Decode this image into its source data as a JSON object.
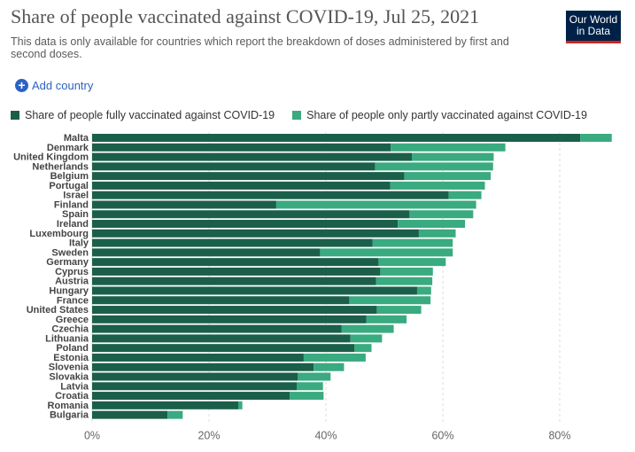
{
  "header": {
    "title": "Share of people vaccinated against COVID-19, Jul 25, 2021",
    "subtitle": "This data is only available for countries which report the breakdown of doses administered by first and second doses.",
    "logo_line1": "Our World",
    "logo_line2": "in Data"
  },
  "controls": {
    "add_country": "Add country"
  },
  "colors": {
    "fully": "#1b5f4a",
    "partly": "#3aaa80",
    "grid": "#dddddd",
    "link": "#2c62c4"
  },
  "chart_data": {
    "type": "bar",
    "orientation": "horizontal",
    "stacked": true,
    "title": "Share of people vaccinated against COVID-19, Jul 25, 2021",
    "xlabel": "",
    "ylabel": "",
    "xlim": [
      0,
      90
    ],
    "x_ticks": [
      "0%",
      "20%",
      "40%",
      "60%",
      "80%"
    ],
    "x_tick_values": [
      0,
      20,
      40,
      60,
      80
    ],
    "grid": true,
    "legend_position": "top",
    "categories": [
      "Malta",
      "Denmark",
      "United Kingdom",
      "Netherlands",
      "Belgium",
      "Portugal",
      "Israel",
      "Finland",
      "Spain",
      "Ireland",
      "Luxembourg",
      "Italy",
      "Sweden",
      "Germany",
      "Cyprus",
      "Austria",
      "Hungary",
      "France",
      "United States",
      "Greece",
      "Czechia",
      "Lithuania",
      "Poland",
      "Estonia",
      "Slovenia",
      "Slovakia",
      "Latvia",
      "Croatia",
      "Romania",
      "Bulgaria"
    ],
    "series": [
      {
        "name": "Share of people fully vaccinated against COVID-19",
        "values": [
          83.5,
          51.1,
          54.7,
          48.4,
          53.4,
          51.0,
          61.0,
          31.5,
          54.3,
          52.3,
          55.9,
          48.0,
          39.0,
          49.0,
          49.3,
          48.6,
          55.6,
          44.0,
          48.7,
          46.9,
          42.7,
          44.2,
          44.9,
          36.2,
          37.9,
          35.2,
          35.0,
          33.8,
          25.0,
          12.9
        ],
        "color": "#1b5f4a"
      },
      {
        "name": "Share of people only partly vaccinated against COVID-19",
        "values": [
          5.4,
          19.6,
          14.0,
          20.2,
          14.8,
          16.2,
          5.6,
          34.2,
          10.9,
          11.5,
          6.3,
          13.7,
          22.7,
          11.5,
          9.0,
          9.6,
          2.4,
          13.9,
          7.6,
          6.9,
          8.9,
          5.4,
          2.9,
          10.6,
          5.2,
          5.6,
          4.5,
          5.8,
          0.7,
          2.6
        ],
        "color": "#3aaa80"
      }
    ]
  }
}
